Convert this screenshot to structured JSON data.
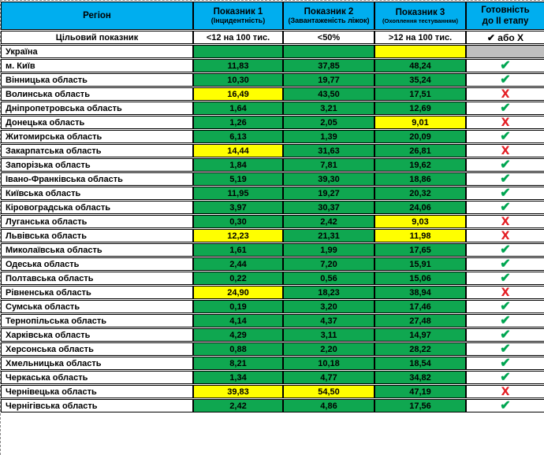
{
  "colors": {
    "header_bg": "#00AEEF",
    "pass_green": "#0FA750",
    "fail_yellow": "#FFFF00",
    "na_gray": "#BFBFBF",
    "check_green": "#00A651",
    "cross_red": "#E31E24"
  },
  "icons": {
    "check": "✔",
    "cross": "X"
  },
  "chart_data": {
    "type": "table",
    "columns": [
      {
        "label": "Регіон",
        "sub": ""
      },
      {
        "label": "Показник 1",
        "sub": "(Інцидентність)"
      },
      {
        "label": "Показник 2",
        "sub": "(Завантаженість ліжок)"
      },
      {
        "label": "Показник 3",
        "sub": "(Охоплення тестуванням)"
      },
      {
        "label": "Готовність",
        "sub": "до ІІ етапу"
      }
    ],
    "target": {
      "label": "Цільовий показник",
      "p1": "<12 на 100 тис.",
      "p2": "<50%",
      "p3": ">12 на 100 тис.",
      "ready": "✔ або X"
    },
    "rows": [
      {
        "region": "Україна",
        "values": [
          "",
          "",
          ""
        ],
        "states": [
          "ok",
          "ok",
          "fail"
        ],
        "ready": "none"
      },
      {
        "region": "м. Київ",
        "values": [
          "11,83",
          "37,85",
          "48,24"
        ],
        "states": [
          "ok",
          "ok",
          "ok"
        ],
        "ready": "check"
      },
      {
        "region": "Вінницька область",
        "values": [
          "10,30",
          "19,77",
          "35,24"
        ],
        "states": [
          "ok",
          "ok",
          "ok"
        ],
        "ready": "check"
      },
      {
        "region": "Волинська область",
        "values": [
          "16,49",
          "43,50",
          "17,51"
        ],
        "states": [
          "fail",
          "ok",
          "ok"
        ],
        "ready": "cross"
      },
      {
        "region": "Дніпропетровська область",
        "values": [
          "1,64",
          "3,21",
          "12,69"
        ],
        "states": [
          "ok",
          "ok",
          "ok"
        ],
        "ready": "check"
      },
      {
        "region": "Донецька область",
        "values": [
          "1,26",
          "2,05",
          "9,01"
        ],
        "states": [
          "ok",
          "ok",
          "fail"
        ],
        "ready": "cross"
      },
      {
        "region": "Житомирська область",
        "values": [
          "6,13",
          "1,39",
          "20,09"
        ],
        "states": [
          "ok",
          "ok",
          "ok"
        ],
        "ready": "check"
      },
      {
        "region": "Закарпатська область",
        "values": [
          "14,44",
          "31,63",
          "26,81"
        ],
        "states": [
          "fail",
          "ok",
          "ok"
        ],
        "ready": "cross"
      },
      {
        "region": "Запорізька область",
        "values": [
          "1,84",
          "7,81",
          "19,62"
        ],
        "states": [
          "ok",
          "ok",
          "ok"
        ],
        "ready": "check"
      },
      {
        "region": "Івано-Франківська область",
        "values": [
          "5,19",
          "39,30",
          "18,86"
        ],
        "states": [
          "ok",
          "ok",
          "ok"
        ],
        "ready": "check"
      },
      {
        "region": "Київська область",
        "values": [
          "11,95",
          "19,27",
          "20,32"
        ],
        "states": [
          "ok",
          "ok",
          "ok"
        ],
        "ready": "check"
      },
      {
        "region": "Кіровоградська область",
        "values": [
          "3,97",
          "30,37",
          "24,06"
        ],
        "states": [
          "ok",
          "ok",
          "ok"
        ],
        "ready": "check"
      },
      {
        "region": "Луганська область",
        "values": [
          "0,30",
          "2,42",
          "9,03"
        ],
        "states": [
          "ok",
          "ok",
          "fail"
        ],
        "ready": "cross"
      },
      {
        "region": "Львівська область",
        "values": [
          "12,23",
          "21,31",
          "11,98"
        ],
        "states": [
          "fail",
          "ok",
          "fail"
        ],
        "ready": "cross"
      },
      {
        "region": "Миколаївська область",
        "values": [
          "1,61",
          "1,99",
          "17,65"
        ],
        "states": [
          "ok",
          "ok",
          "ok"
        ],
        "ready": "check"
      },
      {
        "region": "Одеська область",
        "values": [
          "2,44",
          "7,20",
          "15,91"
        ],
        "states": [
          "ok",
          "ok",
          "ok"
        ],
        "ready": "check"
      },
      {
        "region": "Полтавська область",
        "values": [
          "0,22",
          "0,56",
          "15,06"
        ],
        "states": [
          "ok",
          "ok",
          "ok"
        ],
        "ready": "check"
      },
      {
        "region": "Рівненська область",
        "values": [
          "24,90",
          "18,23",
          "38,94"
        ],
        "states": [
          "fail",
          "ok",
          "ok"
        ],
        "ready": "cross"
      },
      {
        "region": "Сумська область",
        "values": [
          "0,19",
          "3,20",
          "17,46"
        ],
        "states": [
          "ok",
          "ok",
          "ok"
        ],
        "ready": "check"
      },
      {
        "region": "Тернопільська область",
        "values": [
          "4,14",
          "4,37",
          "27,48"
        ],
        "states": [
          "ok",
          "ok",
          "ok"
        ],
        "ready": "check"
      },
      {
        "region": "Харківська область",
        "values": [
          "4,29",
          "3,11",
          "14,97"
        ],
        "states": [
          "ok",
          "ok",
          "ok"
        ],
        "ready": "check"
      },
      {
        "region": "Херсонська область",
        "values": [
          "0,88",
          "2,20",
          "28,22"
        ],
        "states": [
          "ok",
          "ok",
          "ok"
        ],
        "ready": "check"
      },
      {
        "region": "Хмельницька область",
        "values": [
          "8,21",
          "10,18",
          "18,54"
        ],
        "states": [
          "ok",
          "ok",
          "ok"
        ],
        "ready": "check"
      },
      {
        "region": "Черкаська область",
        "values": [
          "1,34",
          "4,77",
          "34,82"
        ],
        "states": [
          "ok",
          "ok",
          "ok"
        ],
        "ready": "check"
      },
      {
        "region": "Чернівецька область",
        "values": [
          "39,83",
          "54,50",
          "47,19"
        ],
        "states": [
          "fail",
          "fail",
          "ok"
        ],
        "ready": "cross"
      },
      {
        "region": "Чернігівська область",
        "values": [
          "2,42",
          "4,86",
          "17,56"
        ],
        "states": [
          "ok",
          "ok",
          "ok"
        ],
        "ready": "check"
      }
    ]
  }
}
